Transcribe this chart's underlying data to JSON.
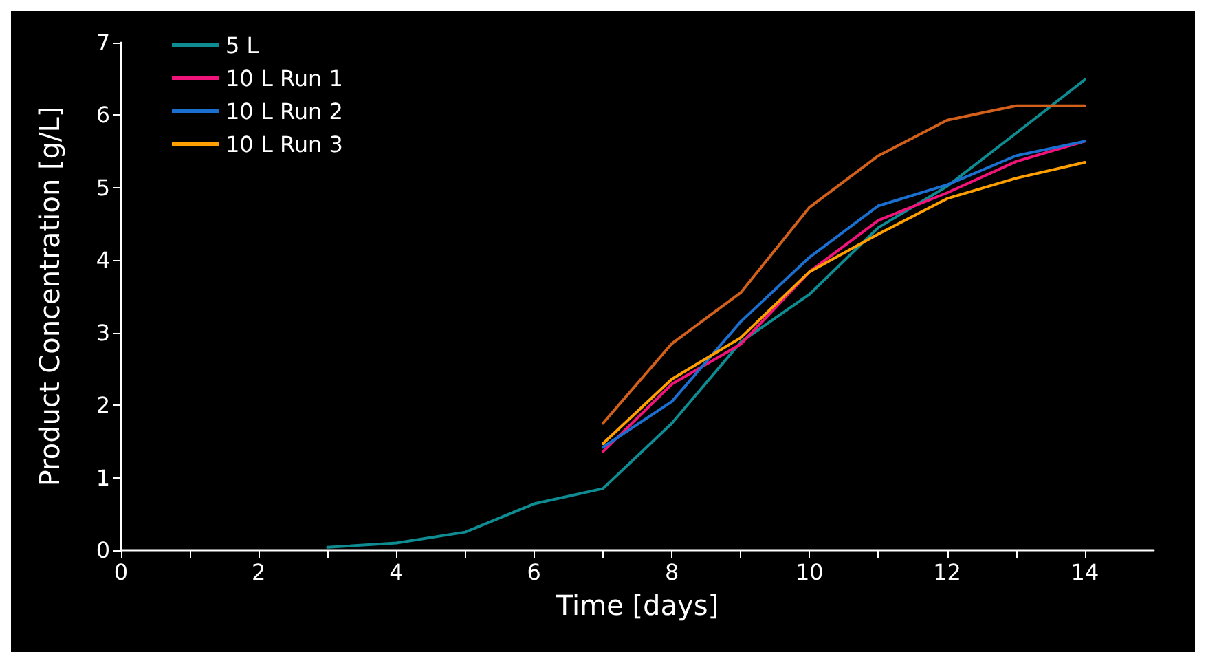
{
  "chart_data": {
    "type": "line",
    "xlabel": "Time [days]",
    "ylabel": "Product Concentration [g/L]",
    "xlim": [
      0,
      15
    ],
    "xticks": [
      0,
      {
        "value": 1,
        "label": null
      },
      2,
      {
        "value": 3,
        "label": null
      },
      4,
      {
        "value": 5,
        "label": null
      },
      6,
      {
        "value": 7,
        "label": null
      },
      8,
      {
        "value": 9,
        "label": null
      },
      10,
      {
        "value": 11,
        "label": null
      },
      12,
      {
        "value": 13,
        "label": null
      },
      14
    ],
    "ylim": [
      0,
      7
    ],
    "yticks": [
      0,
      1,
      2,
      3,
      4,
      5,
      6,
      7
    ],
    "grid": false,
    "legend": "top left",
    "marker": "none",
    "line_style": "solid",
    "series": [
      {
        "name": "5 L",
        "color": "#0e8c92",
        "x": [
          3,
          4,
          5,
          6,
          7,
          8,
          9,
          10,
          11,
          12,
          13,
          14
        ],
        "values": [
          0.04,
          0.1,
          0.25,
          0.64,
          0.85,
          1.75,
          2.87,
          3.53,
          4.45,
          5.02,
          5.75,
          6.49
        ]
      },
      {
        "name": "10 L Run 1",
        "color": "#f0147a",
        "x": [
          7,
          8,
          9,
          10,
          11,
          12,
          13,
          14
        ],
        "values": [
          1.36,
          2.29,
          2.84,
          3.84,
          4.55,
          4.93,
          5.36,
          5.64
        ]
      },
      {
        "name": "10 L Run 2",
        "color": "#1a6fd0",
        "x": [
          7,
          8,
          9,
          10,
          11,
          12,
          13,
          14
        ],
        "values": [
          1.42,
          2.05,
          3.15,
          4.04,
          4.75,
          5.04,
          5.44,
          5.64
        ]
      },
      {
        "name": "10 L Run 3",
        "color": "#ffa000",
        "x": [
          7,
          8,
          9,
          10,
          11,
          12,
          13,
          14
        ],
        "values": [
          1.47,
          2.36,
          2.93,
          3.84,
          4.36,
          4.85,
          5.13,
          5.35
        ]
      },
      {
        "color": "#d2601a",
        "x": [
          7,
          8,
          9,
          10,
          11,
          12,
          13,
          14
        ],
        "values": [
          1.75,
          2.85,
          3.55,
          4.73,
          5.44,
          5.93,
          6.13,
          6.13
        ]
      }
    ]
  }
}
